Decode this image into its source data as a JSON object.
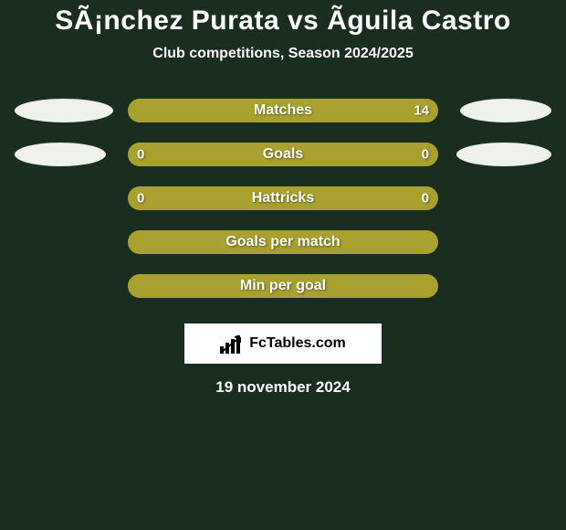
{
  "title": "SÃ¡nchez Purata vs Ãguila Castro",
  "title_color": "#ffffff",
  "title_fontsize": 30,
  "subtitle": "Club competitions, Season 2024/2025",
  "subtitle_color": "#ffffff",
  "subtitle_fontsize": 16,
  "background_color": "#1a2e1f",
  "bar_color": "#a8a02f",
  "bar_label_color": "#ffffff",
  "bar_label_fontsize": 16,
  "bar_val_color": "#ffffff",
  "bar_val_fontsize": 15,
  "ellipse_color": "#eef2eb",
  "rows": [
    {
      "label": "Matches",
      "left": "",
      "right": "14",
      "left_ellipse_w": 108,
      "right_ellipse_w": 100
    },
    {
      "label": "Goals",
      "left": "0",
      "right": "0",
      "left_ellipse_w": 100,
      "right_ellipse_w": 104
    },
    {
      "label": "Hattricks",
      "left": "0",
      "right": "0",
      "left_ellipse_w": 0,
      "right_ellipse_w": 0
    },
    {
      "label": "Goals per match",
      "left": "",
      "right": "",
      "left_ellipse_w": 0,
      "right_ellipse_w": 0
    },
    {
      "label": "Min per goal",
      "left": "",
      "right": "",
      "left_ellipse_w": 0,
      "right_ellipse_w": 0
    }
  ],
  "logo_text": "FcTables.com",
  "logo_bg": "#ffffff",
  "date": "19 november 2024",
  "date_color": "#ffffff",
  "date_fontsize": 17
}
